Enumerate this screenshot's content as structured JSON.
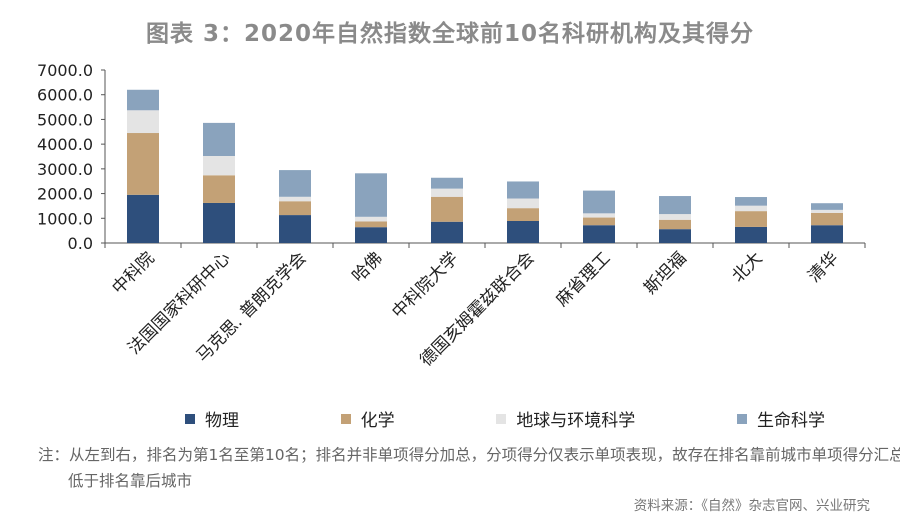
{
  "title": "图表 3：2020年自然指数全球前10名科研机构及其得分",
  "chart_data": {
    "type": "bar",
    "stacked": true,
    "categories": [
      "中科院",
      "法国国家科研中心",
      "马克思. 普朗克学会",
      "哈佛",
      "中科院大学",
      "德国亥姆霍兹联合会",
      "麻省理工",
      "斯坦福",
      "北大",
      "清华"
    ],
    "series": [
      {
        "name": "物理",
        "color": "#2e4f7c",
        "values": [
          1950,
          1620,
          1130,
          640,
          860,
          890,
          720,
          560,
          650,
          720
        ]
      },
      {
        "name": "化学",
        "color": "#c3a176",
        "values": [
          2500,
          1120,
          560,
          230,
          1010,
          520,
          310,
          380,
          640,
          500
        ]
      },
      {
        "name": "地球与环境科学",
        "color": "#e4e4e4",
        "values": [
          920,
          780,
          180,
          190,
          330,
          390,
          170,
          230,
          220,
          120
        ]
      },
      {
        "name": "生命科学",
        "color": "#8aa3bd",
        "values": [
          830,
          1340,
          1080,
          1760,
          440,
          690,
          920,
          730,
          350,
          270
        ]
      }
    ],
    "ylim": [
      0,
      7000
    ],
    "yticks": [
      "0.0",
      "1000.0",
      "2000.0",
      "3000.0",
      "4000.0",
      "5000.0",
      "6000.0",
      "7000.0"
    ],
    "legend_position": "bottom",
    "grid": false
  },
  "note": "注：从左到右，排名为第1名至第10名；排名并非单项得分加总，分项得分仅表示单项表现，故存在排名靠前城市单项得分汇总低于排名靠后城市",
  "source": "资料来源：《自然》杂志官网、兴业研究"
}
